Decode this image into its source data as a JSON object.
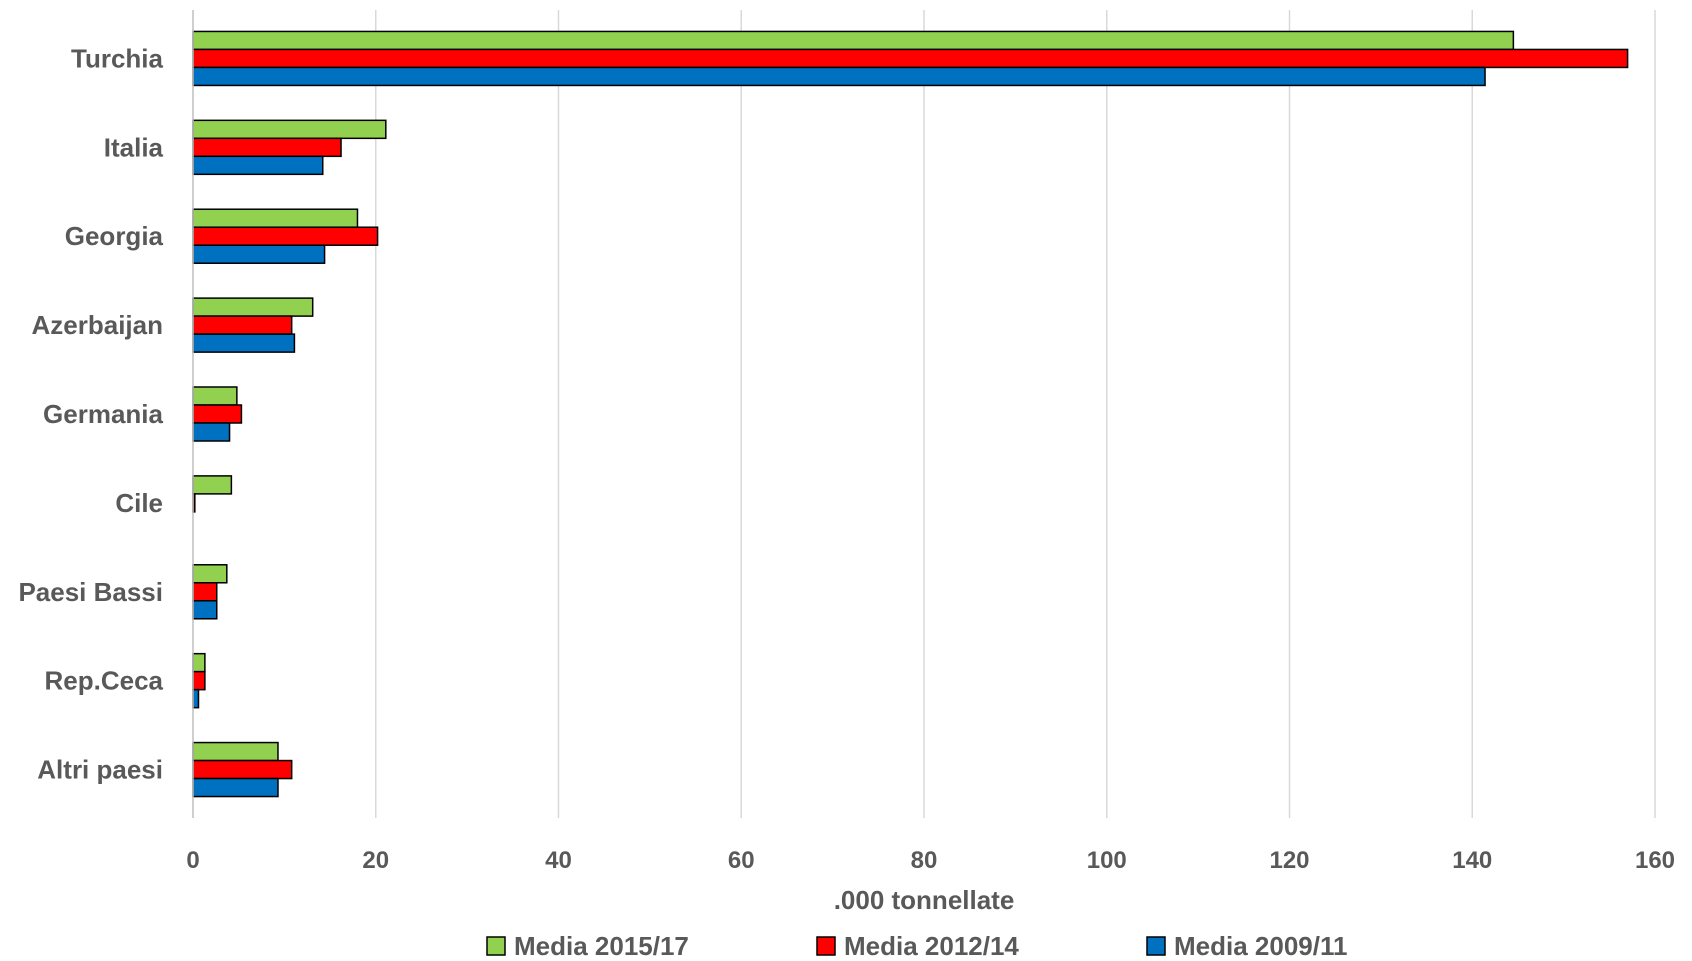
{
  "chart_data": {
    "type": "bar",
    "orientation": "horizontal",
    "categories": [
      "Turchia",
      "Italia",
      "Georgia",
      "Azerbaijan",
      "Germania",
      "Cile",
      "Paesi Bassi",
      "Rep.Ceca",
      "Altri paesi"
    ],
    "series": [
      {
        "name": "Media 2015/17",
        "color": "#92d050",
        "values": [
          144.5,
          21.1,
          18.0,
          13.1,
          4.8,
          4.2,
          3.7,
          1.3,
          9.3
        ]
      },
      {
        "name": "Media 2012/14",
        "color": "#ff0000",
        "values": [
          157.0,
          16.2,
          20.2,
          10.8,
          5.3,
          0.2,
          2.6,
          1.3,
          10.8
        ]
      },
      {
        "name": "Media 2009/11",
        "color": "#0070c0",
        "values": [
          141.4,
          14.2,
          14.4,
          11.1,
          4.0,
          0.0,
          2.6,
          0.6,
          9.3
        ]
      }
    ],
    "xlabel": ".000 tonnellate",
    "xlim": [
      0,
      160
    ],
    "xticks": [
      "0",
      "20",
      "40",
      "60",
      "80",
      "100",
      "120",
      "140",
      "160"
    ],
    "grid": "vertical",
    "legend_position": "bottom"
  }
}
